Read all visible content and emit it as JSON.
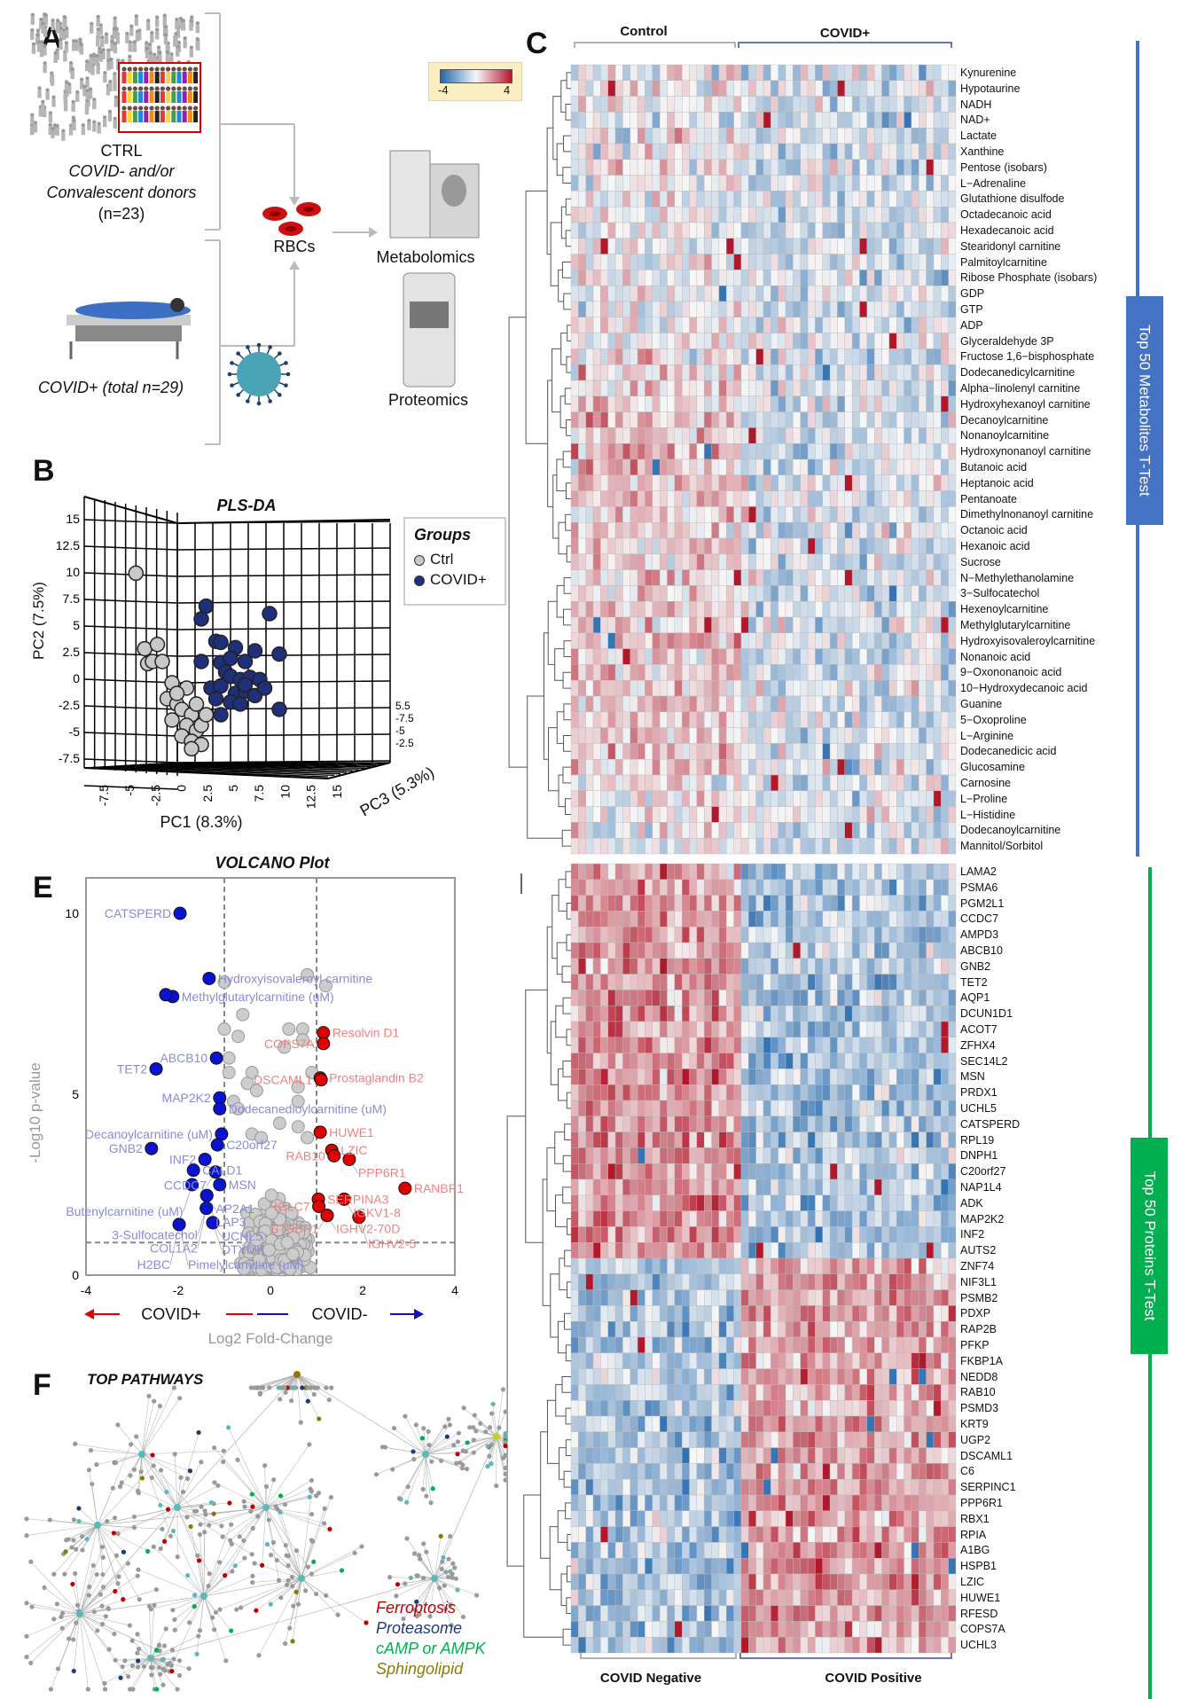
{
  "panels": {
    "a": "A",
    "b": "B",
    "c": "C",
    "e": "E",
    "f": "F"
  },
  "panel_a": {
    "ctrl_title": "CTRL",
    "ctrl_line1": "COVID- and/or",
    "ctrl_line2": "Convalescent donors",
    "ctrl_n": "(n=23)",
    "rbcs": "RBCs",
    "metabolomics": "Metabolomics",
    "proteomics": "Proteomics",
    "covid_label": "COVID+ (total n=29)"
  },
  "colorbar": {
    "min_label": "-4",
    "max_label": "4",
    "low_color": "#2166ac",
    "mid_color": "#f7f7f7",
    "high_color": "#b2182b"
  },
  "chart_data": [
    {
      "type": "scatter",
      "title": "PLS-DA",
      "xlabel": "PC1 (8.3%)",
      "ylabel": "PC2 (7.5%)",
      "zlabel": "PC3 (5.3%)",
      "xticks": [
        "-7.5",
        "-5",
        "-2.5",
        "0",
        "2.5",
        "5",
        "7.5",
        "10",
        "12.5",
        "15"
      ],
      "yticks": [
        "15",
        "12.5",
        "10",
        "7.5",
        "5",
        "2.5",
        "0",
        "-2.5",
        "-5",
        "-7.5"
      ],
      "legend": {
        "title": "Groups",
        "placement": "right"
      },
      "series": [
        {
          "name": "Ctrl",
          "color": "#c8c8c8",
          "points": [
            [
              -4.7,
              10.3
            ],
            [
              -3.8,
              3.2
            ],
            [
              -2.5,
              3.6
            ],
            [
              -3.5,
              1.8
            ],
            [
              -3,
              2
            ],
            [
              -2,
              2
            ],
            [
              -1,
              0
            ],
            [
              0.5,
              -0.5
            ],
            [
              -1.5,
              -1.5
            ],
            [
              -0.5,
              -2
            ],
            [
              0,
              -2.5
            ],
            [
              1,
              -3
            ],
            [
              -1,
              -3.5
            ],
            [
              0.5,
              -4
            ],
            [
              1.5,
              -4.5
            ],
            [
              0,
              -5
            ],
            [
              1,
              -5.5
            ],
            [
              2,
              -4
            ],
            [
              2.5,
              -3
            ],
            [
              1.5,
              -2
            ],
            [
              -0.5,
              -1
            ],
            [
              2,
              -5.8
            ],
            [
              1,
              -6.2
            ]
          ]
        },
        {
          "name": "COVID+",
          "color": "#1f2f7a",
          "points": [
            [
              2,
              6
            ],
            [
              2.5,
              7.2
            ],
            [
              9,
              6.5
            ],
            [
              3.5,
              3.9
            ],
            [
              4,
              3.8
            ],
            [
              5.5,
              3.3
            ],
            [
              7.5,
              3
            ],
            [
              10,
              2.7
            ],
            [
              2,
              2
            ],
            [
              4,
              1.9
            ],
            [
              5,
              2.3
            ],
            [
              6.5,
              2
            ],
            [
              4.5,
              1
            ],
            [
              5,
              0.6
            ],
            [
              6,
              0.3
            ],
            [
              7,
              0.5
            ],
            [
              8,
              0.3
            ],
            [
              3,
              -0.5
            ],
            [
              4,
              -0.3
            ],
            [
              5.5,
              -1
            ],
            [
              6.5,
              -0.8
            ],
            [
              7.5,
              -1.2
            ],
            [
              3.5,
              -1.5
            ],
            [
              5,
              -1.8
            ],
            [
              6,
              -2
            ],
            [
              4,
              -3
            ],
            [
              10,
              -2.5
            ],
            [
              8.5,
              -0.5
            ],
            [
              6.5,
              -0.2
            ]
          ]
        }
      ]
    },
    {
      "type": "scatter",
      "title": "VOLCANO Plot",
      "xlabel": "Log2 Fold-Change",
      "ylabel": "-Log10 p-value",
      "xlim": [
        -4,
        4
      ],
      "ylim": [
        0,
        11
      ],
      "xticks": [
        "-4",
        "-2",
        "0",
        "2",
        "4"
      ],
      "yticks": [
        "0",
        "5",
        "10"
      ],
      "fc_threshold": 1,
      "p_threshold": 0.9,
      "direction_left": "COVID+",
      "direction_right": "COVID-",
      "down": {
        "color": "#0a14d0",
        "label_color": "#8a8ad8",
        "points": [
          {
            "label": "CATSPERD",
            "x": -1.96,
            "y": 10.0
          },
          {
            "label": "Hydroxyisovaleroyl carnitine",
            "x": -1.33,
            "y": 8.2
          },
          {
            "label": "Methylglutarylcarnitine (uM)",
            "x": -2.12,
            "y": 7.7
          },
          {
            "label": "",
            "x": -2.27,
            "y": 7.75
          },
          {
            "label": "ABCB10",
            "x": -1.17,
            "y": 6.0
          },
          {
            "label": "TET2",
            "x": -2.48,
            "y": 5.7
          },
          {
            "label": "MAP2K2",
            "x": -1.1,
            "y": 4.9
          },
          {
            "label": "Dodecanedioylcarnitine (uM)",
            "x": -1.1,
            "y": 4.6
          },
          {
            "label": "Decanoylcarnitine (uM)",
            "x": -1.06,
            "y": 3.9
          },
          {
            "label": "C20orf27",
            "x": -1.15,
            "y": 3.6
          },
          {
            "label": "GNB2",
            "x": -2.58,
            "y": 3.5
          },
          {
            "label": "INF2",
            "x": -1.42,
            "y": 3.2
          },
          {
            "label": "CALD1",
            "x": -1.67,
            "y": 2.9
          },
          {
            "label": "CCDC7",
            "x": -1.19,
            "y": 2.85
          },
          {
            "label": "Butenylcarnitine (uM)",
            "x": -1.7,
            "y": 2.5
          },
          {
            "label": "MSN",
            "x": -1.1,
            "y": 2.5
          },
          {
            "label": "AP2A1",
            "x": -1.38,
            "y": 2.2
          },
          {
            "label": "LAP3",
            "x": -1.38,
            "y": 2.2
          },
          {
            "label": "3-Sulfocatechol",
            "x": -1.39,
            "y": 1.85
          },
          {
            "label": "COL1A2",
            "x": -1.39,
            "y": 1.85
          },
          {
            "label": "H2BC",
            "x": -1.98,
            "y": 1.4
          },
          {
            "label": "Pimelylcarnitine (uM)",
            "x": -1.98,
            "y": 1.4
          },
          {
            "label": "UCHL5",
            "x": -1.25,
            "y": 1.45
          },
          {
            "label": "DTYMK",
            "x": -1.25,
            "y": 1.45
          }
        ]
      },
      "up": {
        "color": "#e00000",
        "label_color": "#f08080",
        "points": [
          {
            "label": "Resolvin D1",
            "x": 1.15,
            "y": 6.7
          },
          {
            "label": "COPS7A",
            "x": 1.15,
            "y": 6.4
          },
          {
            "label": "Prostaglandin B2",
            "x": 1.08,
            "y": 5.45
          },
          {
            "label": "DSCAML1",
            "x": 1.1,
            "y": 5.4
          },
          {
            "label": "HUWE1",
            "x": 1.08,
            "y": 3.95
          },
          {
            "label": "LZIC",
            "x": 1.33,
            "y": 3.45
          },
          {
            "label": "RAB10",
            "x": 1.38,
            "y": 3.3
          },
          {
            "label": "PPP6R1",
            "x": 1.71,
            "y": 3.2
          },
          {
            "label": "RANBP1",
            "x": 2.92,
            "y": 2.4
          },
          {
            "label": "SERPINA3",
            "x": 1.04,
            "y": 2.1
          },
          {
            "label": "IGKV1-8",
            "x": 1.6,
            "y": 2.1
          },
          {
            "label": "IGLC7",
            "x": 1.05,
            "y": 1.9
          },
          {
            "label": "IGHV2-70D",
            "x": 1.23,
            "y": 1.65
          },
          {
            "label": "IGHV2-5",
            "x": 1.92,
            "y": 1.6
          },
          {
            "label": "GTPBP1",
            "x": 1.23,
            "y": 1.65
          }
        ]
      },
      "ns": {
        "color": "#cccccc",
        "points": [
          [
            -1,
            8.1
          ],
          [
            0.8,
            8.3
          ],
          [
            1.2,
            8.0
          ],
          [
            -0.6,
            7.2
          ],
          [
            -1,
            6.8
          ],
          [
            -0.7,
            6.6
          ],
          [
            0.4,
            6.8
          ],
          [
            0.7,
            6.8
          ],
          [
            0.7,
            6.5
          ],
          [
            0.3,
            6.3
          ],
          [
            -0.9,
            6.0
          ],
          [
            -0.9,
            5.6
          ],
          [
            -0.4,
            5.6
          ],
          [
            -0.5,
            5.3
          ],
          [
            -0.3,
            5.1
          ],
          [
            0.9,
            5.6
          ],
          [
            0.6,
            5.2
          ],
          [
            0.6,
            4.8
          ],
          [
            -0.8,
            4.8
          ],
          [
            -0.7,
            4.6
          ],
          [
            0.2,
            4.2
          ],
          [
            0.6,
            4.1
          ],
          [
            0.8,
            3.8
          ],
          [
            -0.4,
            3.9
          ],
          [
            -0.2,
            3.8
          ]
        ]
      }
    },
    {
      "type": "heatmap",
      "title": "Top 50 Metabolites  T-Test",
      "group_labels": [
        "Control",
        "COVID+"
      ],
      "group_sizes": [
        23,
        29
      ],
      "rows": [
        "Kynurenine",
        "Hypotaurine",
        "NADH",
        "NAD+",
        "Lactate",
        "Xanthine",
        "Pentose (isobars)",
        "L−Adrenaline",
        "Glutathione disulfode",
        "Octadecanoic acid",
        "Hexadecanoic acid",
        "Stearidonyl carnitine",
        "Palmitoylcarnitine",
        "Ribose Phosphate (isobars)",
        "GDP",
        "GTP",
        "ADP",
        "Glyceraldehyde 3P",
        "Fructose 1,6−bisphosphate",
        "Dodecanedicylcarnitine",
        "Alpha−linolenyl carnitine",
        "Hydroxyhexanoyl carnitine",
        "Decanoylcarnitine",
        "Nonanoylcarnitine",
        "Hydroxynonanoyl carnitine",
        "Butanoic acid",
        "Heptanoic acid",
        "Pentanoate",
        "Dimethylnonanoyl carnitine",
        "Octanoic acid",
        "Hexanoic acid",
        "Sucrose",
        "N−Methylethanolamine",
        "3−Sulfocatechol",
        "Hexenoylcarnitine",
        "Methylglutarylcarnitine",
        "Hydroxyisovaleroylcarnitine",
        "Nonanoic acid",
        "9−Oxononanoic acid",
        "10−Hydroxydecanoic acid",
        "Guanine",
        "5−Oxoproline",
        "L−Arginine",
        "Dodecanedicic acid",
        "Glucosamine",
        "Carnosine",
        "L−Proline",
        "L−Histidine",
        "Dodecanoylcarnitine",
        "Mannitol/Sorbitol"
      ],
      "side_color": "#4472c4"
    },
    {
      "type": "heatmap",
      "title": "Top 50 Proteins  T-Test",
      "group_labels": [
        "COVID Negative",
        "COVID Positive"
      ],
      "group_sizes": [
        23,
        29
      ],
      "rows": [
        "LAMA2",
        "PSMA6",
        "PGM2L1",
        "CCDC7",
        "AMPD3",
        "ABCB10",
        "GNB2",
        "TET2",
        "AQP1",
        "DCUN1D1",
        "ACOT7",
        "ZFHX4",
        "SEC14L2",
        "MSN",
        "PRDX1",
        "UCHL5",
        "CATSPERD",
        "RPL19",
        "DNPH1",
        "C20orf27",
        "NAP1L4",
        "ADK",
        "MAP2K2",
        "INF2",
        "AUTS2",
        "ZNF74",
        "NIF3L1",
        "PSMB2",
        "PDXP",
        "RAP2B",
        "PFKP",
        "FKBP1A",
        "NEDD8",
        "RAB10",
        "PSMD3",
        "KRT9",
        "UGP2",
        "DSCAML1",
        "C6",
        "SERPINC1",
        "PPP6R1",
        "RBX1",
        "RPIA",
        "A1BG",
        "HSPB1",
        "LZIC",
        "HUWE1",
        "RFESD",
        "COPS7A",
        "UCHL3"
      ],
      "side_color": "#00b050"
    }
  ],
  "panel_f": {
    "title": "TOP PATHWAYS",
    "legend": [
      {
        "label": "Ferroptosis",
        "color": "#c00000"
      },
      {
        "label": "Proteasome",
        "color": "#1f3a7a"
      },
      {
        "label": "cAMP or  AMPK",
        "color": "#00b050"
      },
      {
        "label": "Sphingolipid",
        "color": "#8a7a00"
      }
    ]
  }
}
